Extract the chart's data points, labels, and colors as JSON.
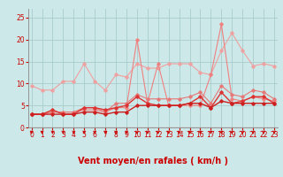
{
  "bg_color": "#cce8e8",
  "grid_color": "#aacccc",
  "x_label": "Vent moyen/en rafales ( km/h )",
  "x_ticks": [
    0,
    1,
    2,
    3,
    4,
    5,
    6,
    7,
    8,
    9,
    10,
    11,
    12,
    13,
    14,
    15,
    16,
    17,
    18,
    19,
    20,
    21,
    22,
    23
  ],
  "y_ticks": [
    0,
    5,
    10,
    15,
    20,
    25
  ],
  "xlim": [
    -0.3,
    23.3
  ],
  "ylim": [
    0,
    27
  ],
  "series": [
    {
      "x": [
        0,
        1,
        2,
        3,
        4,
        5,
        6,
        7,
        8,
        9,
        10,
        11,
        12,
        13,
        14,
        15,
        16,
        17,
        18,
        19,
        20,
        21,
        22,
        23
      ],
      "y": [
        9.5,
        8.5,
        8.5,
        10.5,
        10.5,
        14.5,
        10.5,
        8.5,
        12.0,
        11.5,
        14.5,
        13.5,
        13.5,
        14.5,
        14.5,
        14.5,
        12.5,
        12.0,
        17.5,
        21.5,
        17.5,
        14.0,
        14.5,
        14.0
      ],
      "color": "#f0a0a0",
      "linewidth": 0.8,
      "marker": "D",
      "markersize": 1.8,
      "zorder": 2
    },
    {
      "x": [
        0,
        1,
        2,
        3,
        4,
        5,
        6,
        7,
        8,
        9,
        10,
        11,
        12,
        13,
        14,
        15,
        16,
        17,
        18,
        19,
        20,
        21,
        22,
        23
      ],
      "y": [
        3.0,
        3.0,
        3.5,
        3.5,
        3.5,
        4.5,
        4.5,
        3.5,
        5.5,
        5.5,
        7.5,
        6.5,
        6.5,
        6.5,
        6.5,
        7.0,
        8.0,
        5.5,
        9.5,
        7.5,
        7.0,
        8.5,
        8.0,
        6.5
      ],
      "color": "#e87878",
      "linewidth": 0.8,
      "marker": "D",
      "markersize": 1.8,
      "zorder": 3
    },
    {
      "x": [
        0,
        1,
        2,
        3,
        4,
        5,
        6,
        7,
        8,
        9,
        10,
        11,
        12,
        13,
        14,
        15,
        16,
        17,
        18,
        19,
        20,
        21,
        22,
        23
      ],
      "y": [
        3.0,
        3.0,
        3.5,
        3.5,
        3.5,
        4.0,
        4.0,
        3.5,
        4.5,
        4.5,
        20.0,
        5.5,
        14.5,
        5.0,
        5.0,
        5.0,
        5.0,
        12.0,
        23.5,
        6.5,
        6.0,
        7.0,
        6.5,
        6.0
      ],
      "color": "#f08080",
      "linewidth": 0.8,
      "marker": "D",
      "markersize": 1.8,
      "zorder": 2
    },
    {
      "x": [
        0,
        1,
        2,
        3,
        4,
        5,
        6,
        7,
        8,
        9,
        10,
        11,
        12,
        13,
        14,
        15,
        16,
        17,
        18,
        19,
        20,
        21,
        22,
        23
      ],
      "y": [
        3.0,
        3.0,
        3.0,
        3.0,
        3.0,
        3.5,
        3.5,
        3.0,
        3.5,
        3.5,
        5.0,
        5.0,
        5.0,
        5.0,
        5.0,
        5.5,
        5.5,
        4.5,
        6.0,
        5.5,
        5.5,
        5.5,
        5.5,
        5.5
      ],
      "color": "#cc2020",
      "linewidth": 1.0,
      "marker": "D",
      "markersize": 1.8,
      "zorder": 4
    },
    {
      "x": [
        0,
        1,
        2,
        3,
        4,
        5,
        6,
        7,
        8,
        9,
        10,
        11,
        12,
        13,
        14,
        15,
        16,
        17,
        18,
        19,
        20,
        21,
        22,
        23
      ],
      "y": [
        3.0,
        3.0,
        4.0,
        3.0,
        3.0,
        4.5,
        4.5,
        4.0,
        4.5,
        5.0,
        7.0,
        5.5,
        5.0,
        5.0,
        5.0,
        5.5,
        7.0,
        4.5,
        8.0,
        5.5,
        6.0,
        7.0,
        7.0,
        5.5
      ],
      "color": "#dd3333",
      "linewidth": 1.0,
      "marker": "D",
      "markersize": 1.8,
      "zorder": 3
    }
  ],
  "arrow_color": "#cc0000",
  "tick_label_color": "#cc0000",
  "axis_label_color": "#cc0000",
  "axis_label_fontsize": 7,
  "tick_fontsize": 5.5,
  "spine_color": "#888888"
}
